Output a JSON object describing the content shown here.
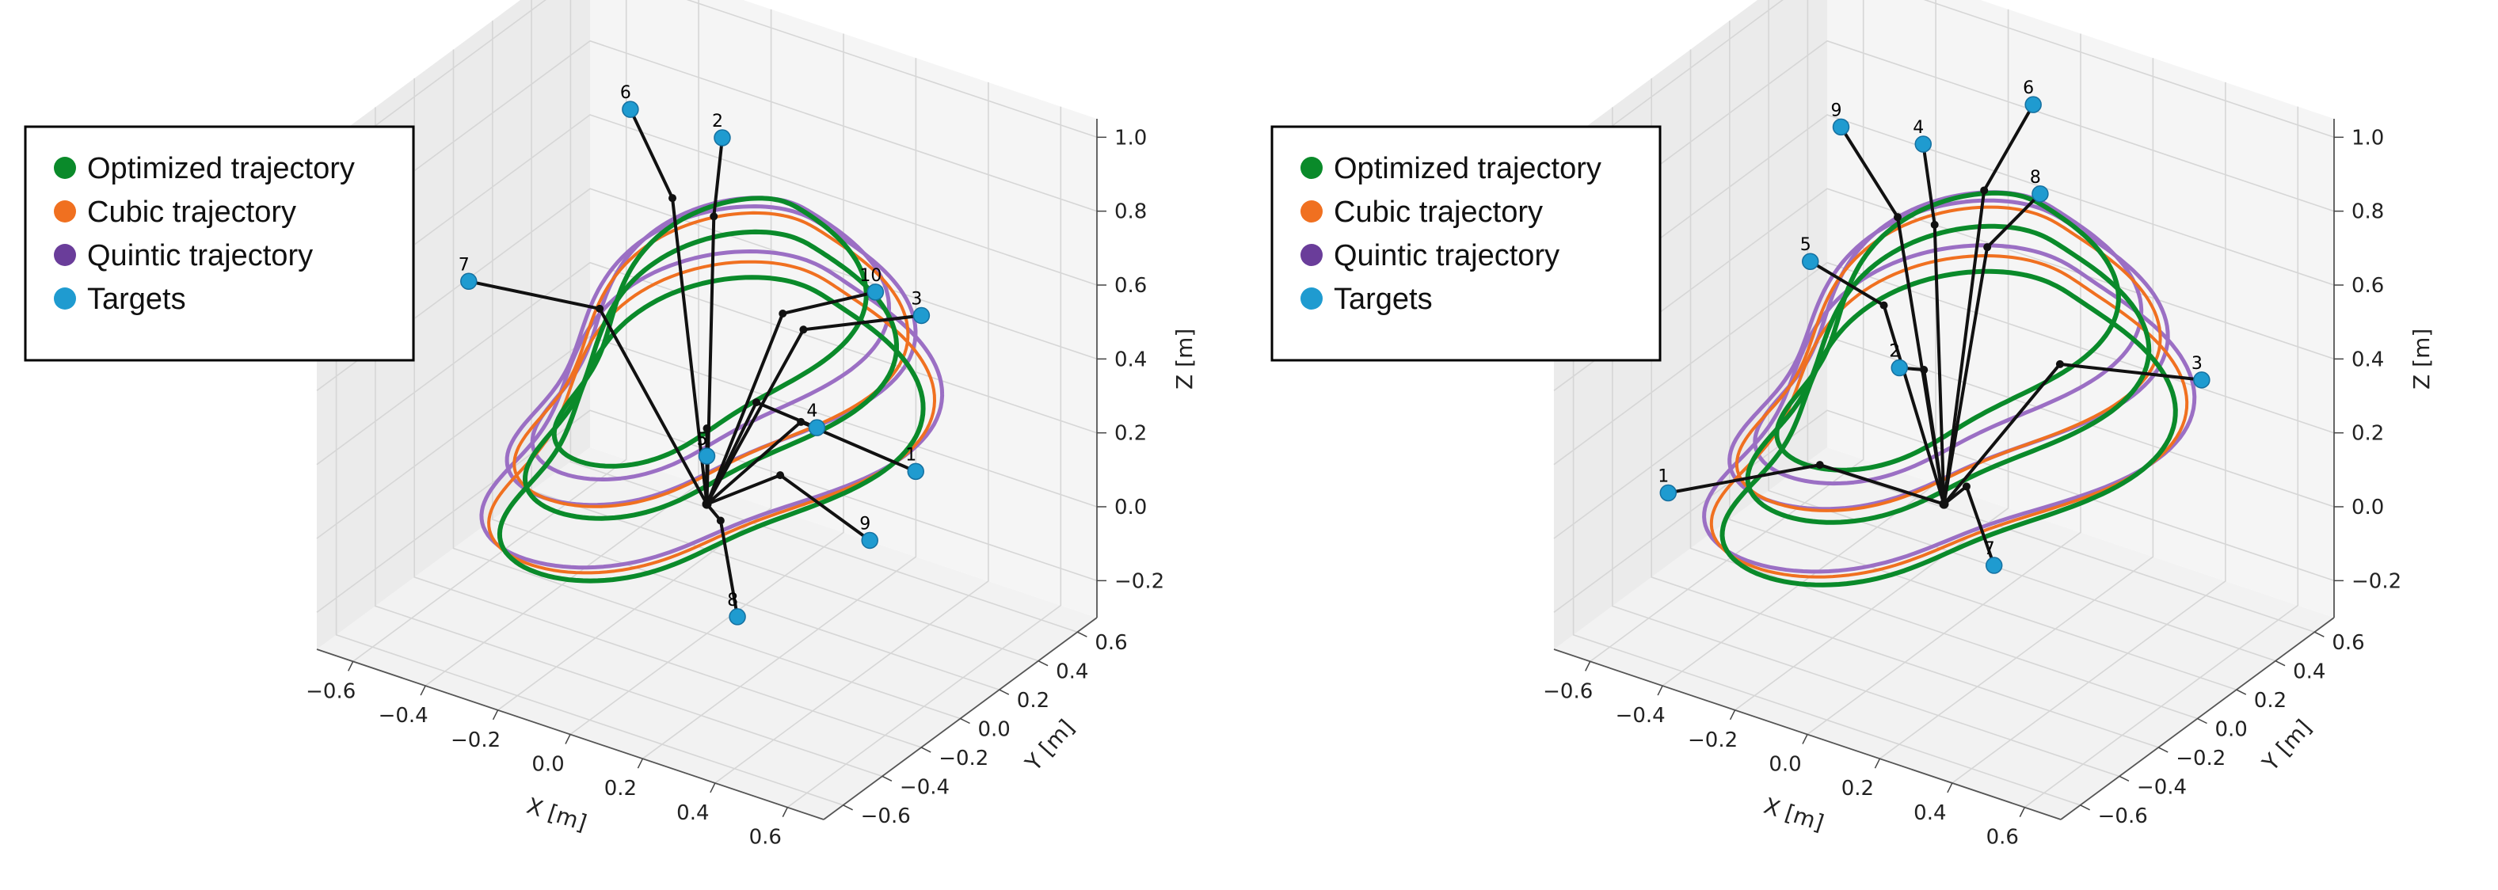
{
  "colors": {
    "optimized": "#0a8a2a",
    "cubic": "#f07020",
    "quintic": "#9b6fc4",
    "quintic_marker": "#6a3d9a",
    "targets": "#1f9bd0",
    "arm": "#111111"
  },
  "legend": [
    {
      "key": "optimized",
      "label": "Optimized trajectory"
    },
    {
      "key": "cubic",
      "label": "Cubic trajectory"
    },
    {
      "key": "quintic",
      "label": "Quintic trajectory"
    },
    {
      "key": "targets",
      "label": "Targets"
    }
  ],
  "chart_data": [
    {
      "type": "line",
      "projection": "3d",
      "xlabel": "X [m]",
      "ylabel": "Y [m]",
      "zlabel": "Z [m]",
      "xticks": [
        "−0.6",
        "−0.4",
        "−0.2",
        "0.0",
        "0.2",
        "0.4",
        "0.6"
      ],
      "yticks": [
        "−0.6",
        "−0.4",
        "−0.2",
        "0.0",
        "0.2",
        "0.4",
        "0.6"
      ],
      "zticks": [
        "−0.2",
        "0.0",
        "0.2",
        "0.4",
        "0.6",
        "0.8",
        "1.0"
      ],
      "xlim": [
        -0.7,
        0.7
      ],
      "ylim": [
        -0.7,
        0.7
      ],
      "zlim": [
        -0.3,
        1.05
      ],
      "grid": true,
      "legend_position": "upper-left",
      "targets": [
        {
          "label": "1",
          "x": 0.55,
          "y": 0.05,
          "z": 0.3
        },
        {
          "label": "2",
          "x": -0.2,
          "y": 0.45,
          "z": 0.8
        },
        {
          "label": "3",
          "x": 0.35,
          "y": 0.45,
          "z": 0.5
        },
        {
          "label": "4",
          "x": 0.25,
          "y": 0.1,
          "z": 0.3
        },
        {
          "label": "5",
          "x": 0.0,
          "y": 0.0,
          "z": 0.18
        },
        {
          "label": "6",
          "x": -0.4,
          "y": 0.35,
          "z": 0.85
        },
        {
          "label": "7",
          "x": -0.55,
          "y": -0.2,
          "z": 0.55
        },
        {
          "label": "8",
          "x": 0.3,
          "y": -0.4,
          "z": 0.0
        },
        {
          "label": "9",
          "x": 0.45,
          "y": 0.0,
          "z": 0.1
        },
        {
          "label": "10",
          "x": 0.25,
          "y": 0.4,
          "z": 0.55
        }
      ]
    },
    {
      "type": "line",
      "projection": "3d",
      "xlabel": "X [m]",
      "ylabel": "Y [m]",
      "zlabel": "Z [m]",
      "xticks": [
        "−0.6",
        "−0.4",
        "−0.2",
        "0.0",
        "0.2",
        "0.4",
        "0.6"
      ],
      "yticks": [
        "−0.6",
        "−0.4",
        "−0.2",
        "0.0",
        "0.2",
        "0.4",
        "0.6"
      ],
      "zticks": [
        "−0.2",
        "0.0",
        "0.2",
        "0.4",
        "0.6",
        "0.8",
        "1.0"
      ],
      "xlim": [
        -0.7,
        0.7
      ],
      "ylim": [
        -0.7,
        0.7
      ],
      "zlim": [
        -0.3,
        1.05
      ],
      "grid": true,
      "legend_position": "upper-left",
      "targets": [
        {
          "label": "1",
          "x": -0.6,
          "y": -0.3,
          "z": 0.0
        },
        {
          "label": "2",
          "x": -0.15,
          "y": 0.05,
          "z": 0.35
        },
        {
          "label": "3",
          "x": 0.55,
          "y": 0.3,
          "z": 0.45
        },
        {
          "label": "4",
          "x": -0.3,
          "y": 0.45,
          "z": 0.75
        },
        {
          "label": "5",
          "x": -0.45,
          "y": 0.15,
          "z": 0.5
        },
        {
          "label": "6",
          "x": -0.05,
          "y": 0.55,
          "z": 0.9
        },
        {
          "label": "7",
          "x": 0.3,
          "y": -0.3,
          "z": 0.1
        },
        {
          "label": "8",
          "x": 0.05,
          "y": 0.4,
          "z": 0.75
        },
        {
          "label": "9",
          "x": -0.5,
          "y": 0.4,
          "z": 0.75
        }
      ]
    }
  ]
}
